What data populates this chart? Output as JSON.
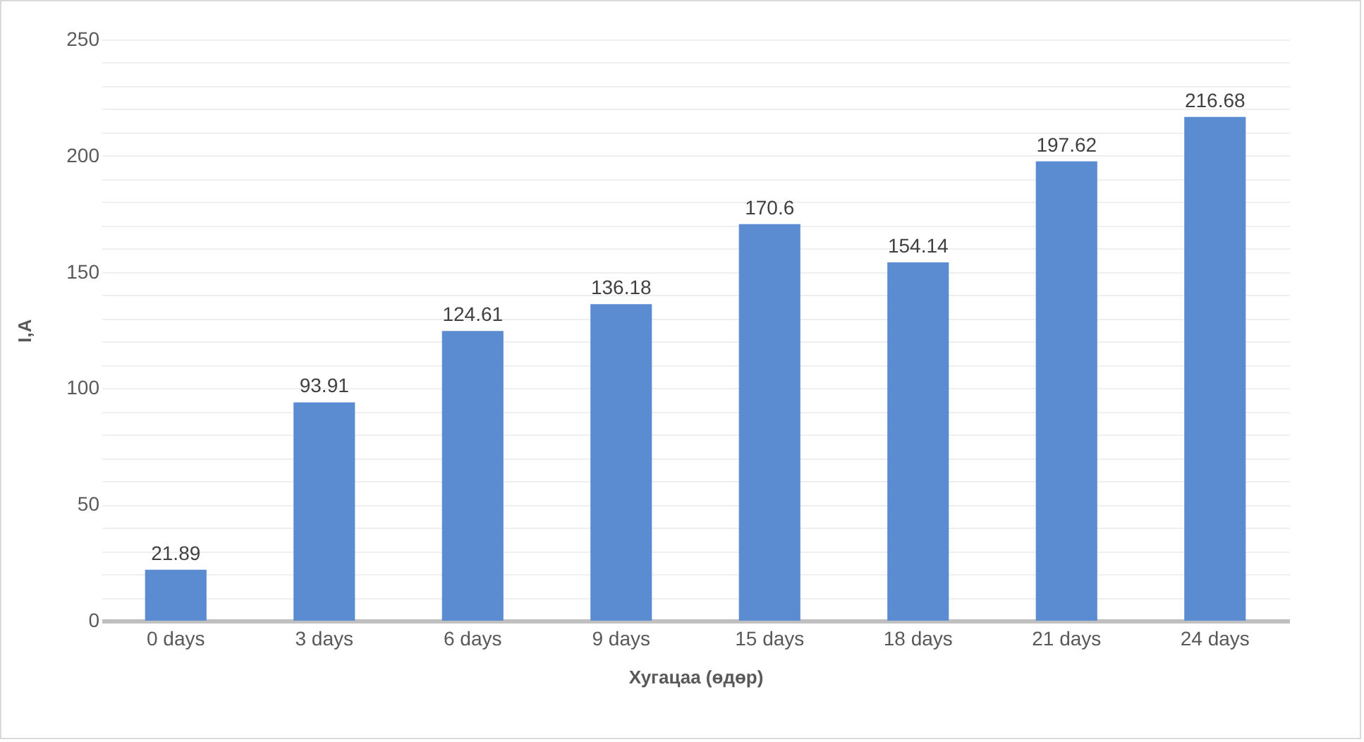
{
  "chart_data": {
    "type": "bar",
    "xlabel": "Хугацаа (өдөр)",
    "ylabel": "I,A",
    "categories": [
      "0 days",
      "3 days",
      "6 days",
      "9 days",
      "15 days",
      "18 days",
      "21 days",
      "24 days"
    ],
    "values": [
      21.89,
      93.91,
      124.61,
      136.18,
      170.6,
      154.14,
      197.62,
      216.68
    ],
    "color": "#5b8bd0",
    "data_labels": true,
    "ylim": [
      0,
      250
    ],
    "yticks": [
      0,
      {
        "value": 10,
        "label": null
      },
      {
        "value": 20,
        "label": null
      },
      {
        "value": 30,
        "label": null
      },
      {
        "value": 40,
        "label": null
      },
      50,
      {
        "value": 60,
        "label": null
      },
      {
        "value": 70,
        "label": null
      },
      {
        "value": 80,
        "label": null
      },
      {
        "value": 90,
        "label": null
      },
      100,
      {
        "value": 110,
        "label": null
      },
      {
        "value": 120,
        "label": null
      },
      {
        "value": 130,
        "label": null
      },
      {
        "value": 140,
        "label": null
      },
      150,
      {
        "value": 160,
        "label": null
      },
      {
        "value": 170,
        "label": null
      },
      {
        "value": 180,
        "label": null
      },
      {
        "value": 190,
        "label": null
      },
      200,
      {
        "value": 210,
        "label": null
      },
      {
        "value": 220,
        "label": null
      },
      {
        "value": 230,
        "label": null
      },
      {
        "value": 240,
        "label": null
      },
      250
    ],
    "grid": "y"
  }
}
